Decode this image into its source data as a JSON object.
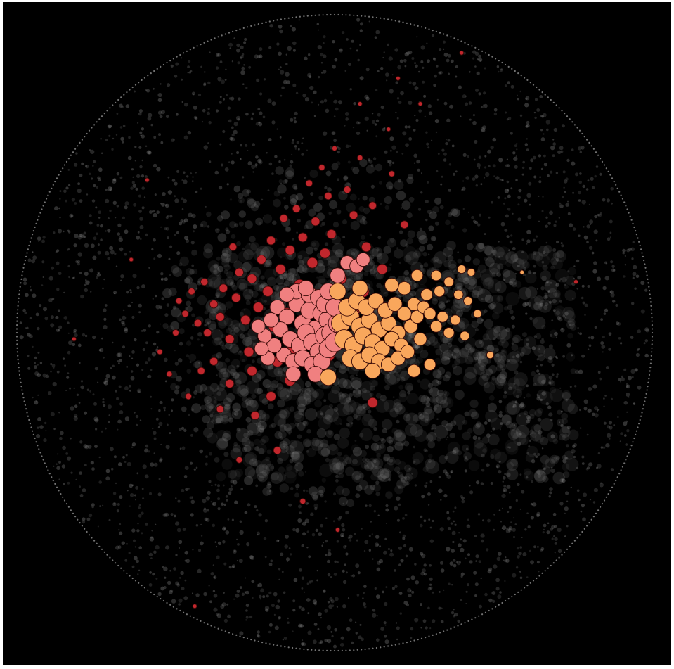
{
  "chart_data": {
    "type": "scatter",
    "title": "",
    "xlabel": "",
    "ylabel": "",
    "legend": "none",
    "grid": false,
    "boundary": "circle",
    "colors": {
      "background": "#000000",
      "background_points": "#9a9a9a",
      "dark_red": "#c1272d",
      "pink": "#f08080",
      "orange": "#f9a75c",
      "outline": "#3a0a08"
    },
    "series": [
      {
        "color": "#c1272d",
        "points": [
          [
            -0.49,
            0.1
          ],
          [
            -0.47,
            0.06
          ],
          [
            -0.45,
            0.13
          ],
          [
            -0.43,
            0.03
          ],
          [
            -0.41,
            0.16
          ],
          [
            -0.4,
            0.0
          ],
          [
            -0.38,
            0.09
          ],
          [
            -0.36,
            0.05
          ],
          [
            -0.35,
            0.14
          ],
          [
            -0.33,
            -0.02
          ],
          [
            -0.31,
            0.11
          ],
          [
            -0.3,
            0.19
          ],
          [
            -0.28,
            0.04
          ],
          [
            -0.27,
            -0.06
          ],
          [
            -0.26,
            0.17
          ],
          [
            -0.24,
            0.08
          ],
          [
            -0.23,
            0.23
          ],
          [
            -0.22,
            -0.03
          ],
          [
            -0.21,
            0.13
          ],
          [
            -0.2,
            0.29
          ],
          [
            -0.19,
            0.02
          ],
          [
            -0.18,
            -0.09
          ],
          [
            -0.17,
            0.2
          ],
          [
            -0.16,
            0.36
          ],
          [
            -0.15,
            0.06
          ],
          [
            -0.14,
            0.26
          ],
          [
            -0.13,
            -0.05
          ],
          [
            -0.12,
            0.39
          ],
          [
            -0.11,
            0.15
          ],
          [
            -0.1,
            0.3
          ],
          [
            -0.09,
            0.02
          ],
          [
            -0.08,
            0.47
          ],
          [
            -0.07,
            0.22
          ],
          [
            -0.06,
            0.35
          ],
          [
            -0.05,
            -0.02
          ],
          [
            -0.04,
            0.52
          ],
          [
            -0.03,
            0.25
          ],
          [
            -0.02,
            0.43
          ],
          [
            -0.01,
            0.31
          ],
          [
            0.0,
            0.58
          ],
          [
            0.02,
            0.17
          ],
          [
            0.04,
            0.45
          ],
          [
            0.06,
            0.37
          ],
          [
            0.08,
            0.55
          ],
          [
            0.1,
            0.27
          ],
          [
            0.12,
            0.4
          ],
          [
            0.15,
            0.2
          ],
          [
            0.18,
            0.5
          ],
          [
            0.22,
            0.34
          ],
          [
            0.27,
            0.72
          ],
          [
            0.4,
            0.88
          ],
          [
            -0.55,
            -0.06
          ],
          [
            -0.5,
            0.0
          ],
          [
            -0.42,
            -0.12
          ],
          [
            -0.36,
            -0.24
          ],
          [
            -0.3,
            -0.4
          ],
          [
            -0.25,
            -0.26
          ],
          [
            -0.18,
            -0.37
          ],
          [
            -0.1,
            -0.53
          ],
          [
            0.01,
            -0.62
          ],
          [
            0.12,
            -0.22
          ],
          [
            -0.44,
            -0.86
          ],
          [
            -0.64,
            0.23
          ],
          [
            -0.82,
            -0.02
          ],
          [
            -0.59,
            0.48
          ],
          [
            0.76,
            0.16
          ],
          [
            0.2,
            0.8
          ],
          [
            0.08,
            0.72
          ],
          [
            0.17,
            0.64
          ],
          [
            -0.32,
            0.27
          ],
          [
            -0.26,
            -0.12
          ],
          [
            -0.38,
            -0.09
          ],
          [
            -0.33,
            -0.16
          ],
          [
            -0.2,
            -0.2
          ],
          [
            -0.14,
            -0.15
          ],
          [
            -0.08,
            -0.1
          ],
          [
            -0.02,
            -0.07
          ],
          [
            0.06,
            0.07
          ],
          [
            0.09,
            0.13
          ],
          [
            -0.46,
            -0.2
          ],
          [
            -0.52,
            -0.13
          ]
        ]
      },
      {
        "color": "#f08080",
        "points": [
          [
            -0.18,
            0.08
          ],
          [
            -0.15,
            0.05
          ],
          [
            -0.12,
            0.09
          ],
          [
            -0.1,
            0.03
          ],
          [
            -0.08,
            0.07
          ],
          [
            -0.06,
            0.01
          ],
          [
            -0.04,
            0.06
          ],
          [
            -0.02,
            0.04
          ],
          [
            -0.17,
            0.01
          ],
          [
            -0.14,
            -0.02
          ],
          [
            -0.11,
            -0.04
          ],
          [
            -0.09,
            0.0
          ],
          [
            -0.07,
            -0.03
          ],
          [
            -0.05,
            -0.06
          ],
          [
            -0.03,
            -0.01
          ],
          [
            -0.01,
            0.0
          ],
          [
            -0.16,
            -0.07
          ],
          [
            -0.13,
            -0.09
          ],
          [
            -0.1,
            -0.08
          ],
          [
            -0.07,
            -0.1
          ],
          [
            -0.04,
            -0.09
          ],
          [
            -0.02,
            -0.05
          ],
          [
            0.0,
            -0.03
          ],
          [
            0.01,
            0.03
          ],
          [
            -0.19,
            -0.04
          ],
          [
            -0.2,
            0.04
          ],
          [
            -0.22,
            -0.01
          ],
          [
            -0.21,
            -0.08
          ],
          [
            -0.12,
            0.13
          ],
          [
            -0.08,
            0.12
          ],
          [
            -0.05,
            0.11
          ],
          [
            -0.03,
            0.09
          ],
          [
            0.01,
            0.18
          ],
          [
            0.04,
            0.22
          ],
          [
            0.07,
            0.21
          ],
          [
            0.09,
            0.23
          ],
          [
            -0.15,
            0.12
          ],
          [
            -0.09,
            0.14
          ],
          [
            -0.02,
            0.13
          ],
          [
            0.0,
            0.08
          ],
          [
            -0.06,
            -0.13
          ],
          [
            -0.13,
            -0.13
          ],
          [
            -0.23,
            -0.05
          ],
          [
            -0.24,
            0.02
          ]
        ]
      },
      {
        "color": "#f9a75c",
        "points": [
          [
            0.02,
            0.03
          ],
          [
            0.05,
            0.05
          ],
          [
            0.08,
            0.02
          ],
          [
            0.11,
            0.04
          ],
          [
            0.14,
            0.01
          ],
          [
            0.17,
            0.03
          ],
          [
            0.2,
            0.0
          ],
          [
            0.03,
            -0.02
          ],
          [
            0.06,
            -0.04
          ],
          [
            0.09,
            -0.01
          ],
          [
            0.12,
            -0.03
          ],
          [
            0.15,
            -0.05
          ],
          [
            0.18,
            -0.02
          ],
          [
            0.21,
            -0.04
          ],
          [
            0.24,
            0.02
          ],
          [
            0.26,
            0.05
          ],
          [
            0.04,
            0.08
          ],
          [
            0.07,
            0.1
          ],
          [
            0.1,
            0.08
          ],
          [
            0.13,
            0.1
          ],
          [
            0.16,
            0.07
          ],
          [
            0.19,
            0.09
          ],
          [
            0.22,
            0.06
          ],
          [
            0.25,
            0.09
          ],
          [
            0.05,
            -0.08
          ],
          [
            0.08,
            -0.09
          ],
          [
            0.11,
            -0.07
          ],
          [
            0.14,
            -0.09
          ],
          [
            0.17,
            -0.1
          ],
          [
            0.2,
            -0.08
          ],
          [
            0.23,
            -0.06
          ],
          [
            0.27,
            -0.02
          ],
          [
            0.28,
            0.08
          ],
          [
            0.3,
            0.06
          ],
          [
            0.32,
            0.02
          ],
          [
            0.34,
            0.05
          ],
          [
            0.29,
            0.12
          ],
          [
            0.33,
            0.13
          ],
          [
            0.36,
            0.16
          ],
          [
            0.39,
            0.12
          ],
          [
            0.42,
            0.1
          ],
          [
            0.45,
            0.06
          ],
          [
            0.43,
            0.19
          ],
          [
            0.4,
            0.2
          ],
          [
            0.32,
            0.18
          ],
          [
            0.26,
            0.18
          ],
          [
            0.22,
            0.14
          ],
          [
            0.36,
            0.0
          ],
          [
            0.38,
            0.04
          ],
          [
            0.41,
            -0.01
          ],
          [
            0.3,
            -0.1
          ],
          [
            0.25,
            -0.12
          ],
          [
            0.12,
            -0.12
          ],
          [
            0.01,
            0.13
          ],
          [
            -0.02,
            -0.14
          ],
          [
            0.59,
            0.19
          ],
          [
            0.49,
            -0.07
          ],
          [
            0.18,
            0.15
          ],
          [
            0.08,
            0.14
          ]
        ]
      }
    ]
  }
}
